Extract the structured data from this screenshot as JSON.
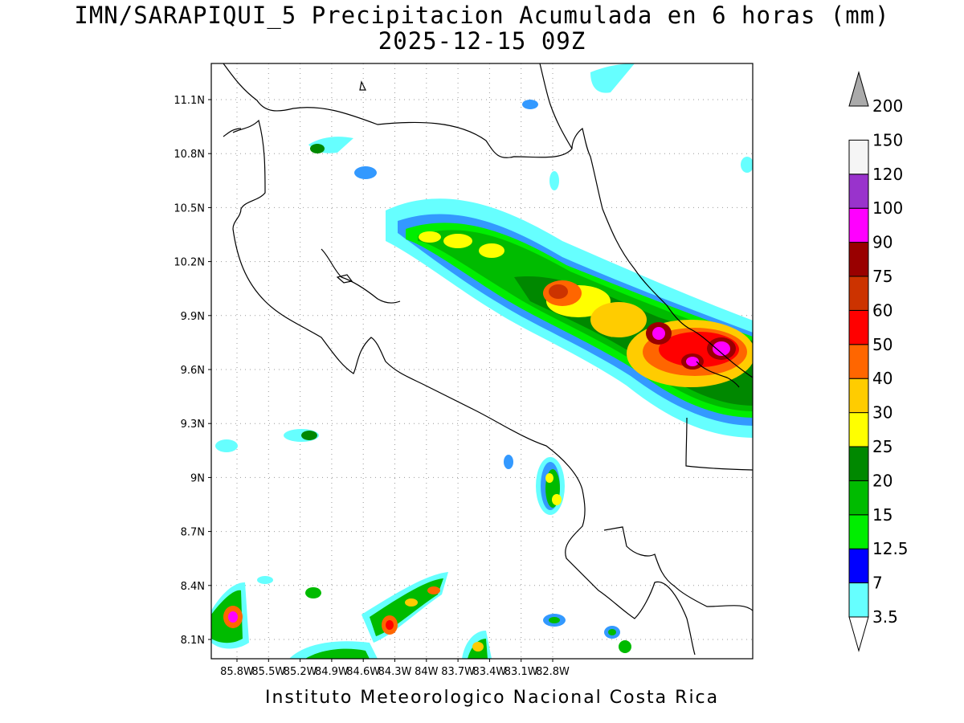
{
  "title": {
    "line1": "IMN/SARAPIQUI_5 Precipitacion Acumulada en 6 horas (mm)",
    "line2": "2025-12-15 09Z"
  },
  "footer": "Instituto Meteorologico Nacional Costa Rica",
  "map": {
    "lat_labels": [
      "11.1N",
      "10.8N",
      "10.5N",
      "10.2N",
      "9.9N",
      "9.6N",
      "9.3N",
      "9N",
      "8.7N",
      "8.4N",
      "8.1N"
    ],
    "lon_labels": [
      "85.8W",
      "85.5W",
      "85.2W",
      "84.9W",
      "84.6W",
      "84.3W",
      "84W",
      "83.7W",
      "83.4W",
      "83.1W",
      "82.8W"
    ],
    "grid": true
  },
  "colorbar": {
    "levels": [
      "3.5",
      "7",
      "12.5",
      "15",
      "20",
      "25",
      "30",
      "40",
      "50",
      "60",
      "75",
      "90",
      "100",
      "120",
      "150",
      "200"
    ],
    "colors": [
      "#66ffff",
      "#3399ff",
      "#0000ff",
      "#00ee00",
      "#00bb00",
      "#008800",
      "#ffff00",
      "#ffcc00",
      "#ff6600",
      "#ff0000",
      "#cc3300",
      "#990000",
      "#ff00ff",
      "#9933cc",
      "#f5f5f5",
      "#aaaaaa"
    ]
  }
}
